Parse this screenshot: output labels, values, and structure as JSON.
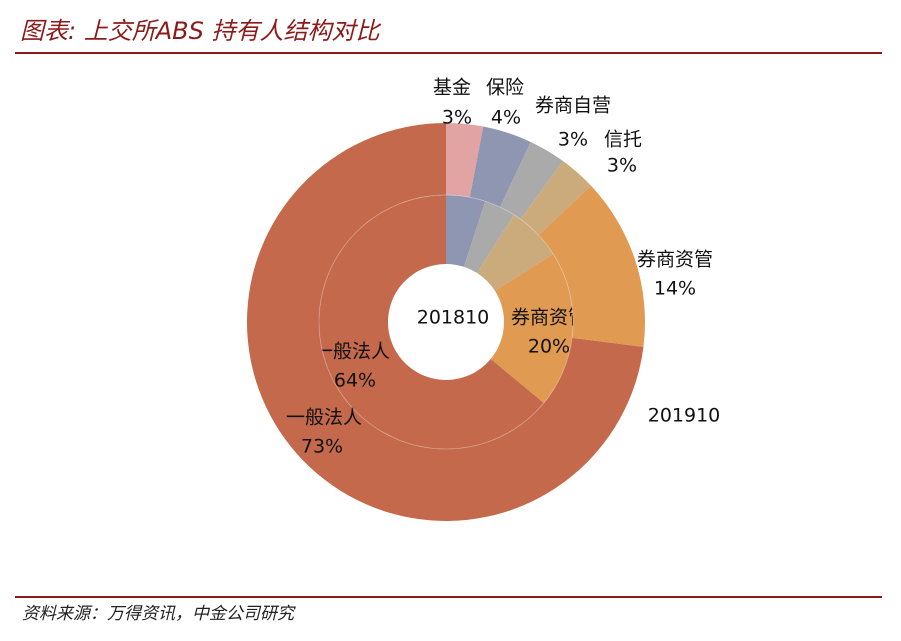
{
  "chart_data": {
    "type": "donut",
    "title": "图表: 上交所ABS 持有人结构对比",
    "source": "资料来源：万得资讯，中金公司研究",
    "categories": [
      "基金",
      "保险",
      "券商自营",
      "信托",
      "券商资管",
      "一般法人"
    ],
    "colors": [
      "#e2a3a3",
      "#8e96b2",
      "#aaaaaa",
      "#cbaa7c",
      "#e09a52",
      "#c4694b"
    ],
    "series": [
      {
        "name": "201810",
        "values": [
          0,
          5,
          4,
          7,
          20,
          64
        ],
        "value_labels": [
          null,
          null,
          null,
          null,
          "20%",
          "64%"
        ]
      },
      {
        "name": "201910",
        "values": [
          3,
          4,
          3,
          3,
          14,
          73
        ],
        "value_labels": [
          "3%",
          "4%",
          "3%",
          "3%",
          "14%",
          "73%"
        ]
      }
    ]
  }
}
